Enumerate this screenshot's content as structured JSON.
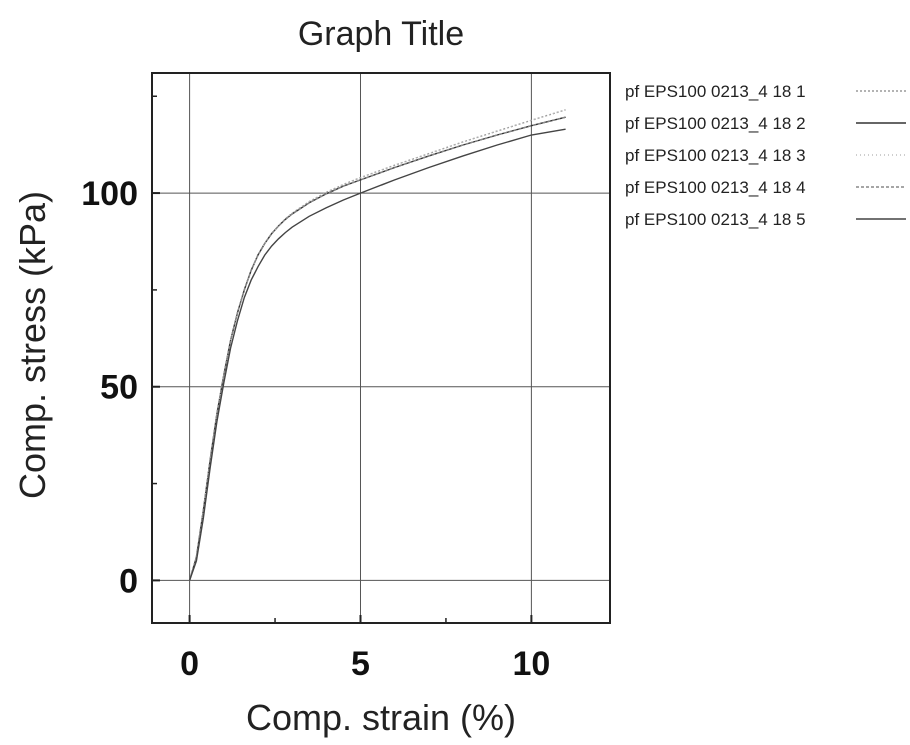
{
  "chart_data": {
    "type": "line",
    "title": "Graph Title",
    "xlabel": "Comp. strain (%)",
    "ylabel": "Comp. stress (kPa)",
    "xlim": [
      -1.1,
      12.3
    ],
    "ylim": [
      -11,
      131
    ],
    "xticks": [
      0,
      5,
      10
    ],
    "xtick_labels": [
      "0",
      "5",
      "10"
    ],
    "yticks": [
      0,
      50,
      100
    ],
    "ytick_labels": [
      "0",
      "50",
      "100"
    ],
    "grid": true,
    "legend_position": "outside-right-top",
    "series": [
      {
        "name": "pf EPS100 0213_4 18 1",
        "color": "#9a9a9a",
        "dash": "2,2",
        "x": [
          0,
          0.2,
          0.4,
          0.6,
          0.8,
          1.0,
          1.2,
          1.4,
          1.6,
          1.8,
          2.0,
          2.2,
          2.4,
          2.6,
          2.8,
          3.0,
          3.5,
          4.0,
          4.5,
          5,
          6,
          7,
          8,
          9,
          10,
          11
        ],
        "y": [
          0,
          6,
          18,
          31,
          43,
          53,
          62,
          69,
          75,
          80,
          84,
          87,
          89.5,
          91.5,
          93.3,
          94.8,
          97.8,
          100.2,
          102.2,
          104.0,
          107.2,
          110.2,
          113.2,
          116.0,
          118.8,
          121.5
        ]
      },
      {
        "name": "pf EPS100 0213_4 18 2",
        "color": "#333333",
        "dash": "",
        "x": [
          0,
          0.2,
          0.4,
          0.6,
          0.8,
          1.0,
          1.2,
          1.4,
          1.6,
          1.8,
          2.0,
          2.2,
          2.4,
          2.6,
          2.8,
          3.0,
          3.5,
          4.0,
          4.5,
          5,
          6,
          7,
          8,
          9,
          10,
          11
        ],
        "y": [
          0,
          6,
          18,
          31,
          43,
          53,
          62,
          69,
          75,
          80,
          84,
          87,
          89.5,
          91.5,
          93.2,
          94.6,
          97.5,
          99.8,
          101.8,
          103.4,
          106.6,
          109.6,
          112.4,
          115.0,
          117.4,
          119.6
        ]
      },
      {
        "name": "pf EPS100 0213_4 18 3",
        "color": "#bdbdbd",
        "dash": "1,3",
        "x": [
          0,
          0.2,
          0.4,
          0.6,
          0.8,
          1.0,
          1.2,
          1.4,
          1.6,
          1.8,
          2.0,
          2.2,
          2.4,
          2.6,
          2.8,
          3.0,
          3.5,
          4.0,
          4.5,
          5,
          6,
          7,
          8,
          9,
          10,
          11
        ],
        "y": [
          0,
          6,
          18,
          31,
          43,
          53,
          62,
          69,
          75,
          80,
          84,
          87,
          89.5,
          91.5,
          93.3,
          94.8,
          97.8,
          100.2,
          102.2,
          104.0,
          107.2,
          110.2,
          113.2,
          116.0,
          118.8,
          121.5
        ]
      },
      {
        "name": "pf EPS100 0213_4 18 4",
        "color": "#888888",
        "dash": "3,2",
        "x": [
          0,
          0.2,
          0.4,
          0.6,
          0.8,
          1.0,
          1.2,
          1.4,
          1.6,
          1.8,
          2.0,
          2.2,
          2.4,
          2.6,
          2.8,
          3.0,
          3.5,
          4.0,
          4.5,
          5,
          6,
          7,
          8,
          9,
          10,
          11
        ],
        "y": [
          0,
          6,
          18,
          31,
          43,
          53,
          62,
          69,
          75,
          80,
          84,
          87,
          89.5,
          91.5,
          93.2,
          94.6,
          97.5,
          99.8,
          101.8,
          103.4,
          106.6,
          109.6,
          112.4,
          115.0,
          117.4,
          119.6
        ]
      },
      {
        "name": "pf EPS100 0213_4 18 5",
        "color": "#444444",
        "dash": "",
        "x": [
          0,
          0.2,
          0.4,
          0.6,
          0.8,
          1.0,
          1.2,
          1.4,
          1.6,
          1.8,
          2.0,
          2.2,
          2.4,
          2.6,
          2.8,
          3.0,
          3.5,
          4.0,
          4.5,
          5,
          6,
          7,
          8,
          9,
          10,
          11
        ],
        "y": [
          0,
          5,
          16,
          29,
          41,
          51,
          60,
          67,
          73,
          77.5,
          81,
          84,
          86.3,
          88.2,
          89.8,
          91.2,
          94.0,
          96.2,
          98.2,
          100.0,
          103.4,
          106.6,
          109.6,
          112.4,
          115.0,
          116.5
        ]
      }
    ]
  }
}
